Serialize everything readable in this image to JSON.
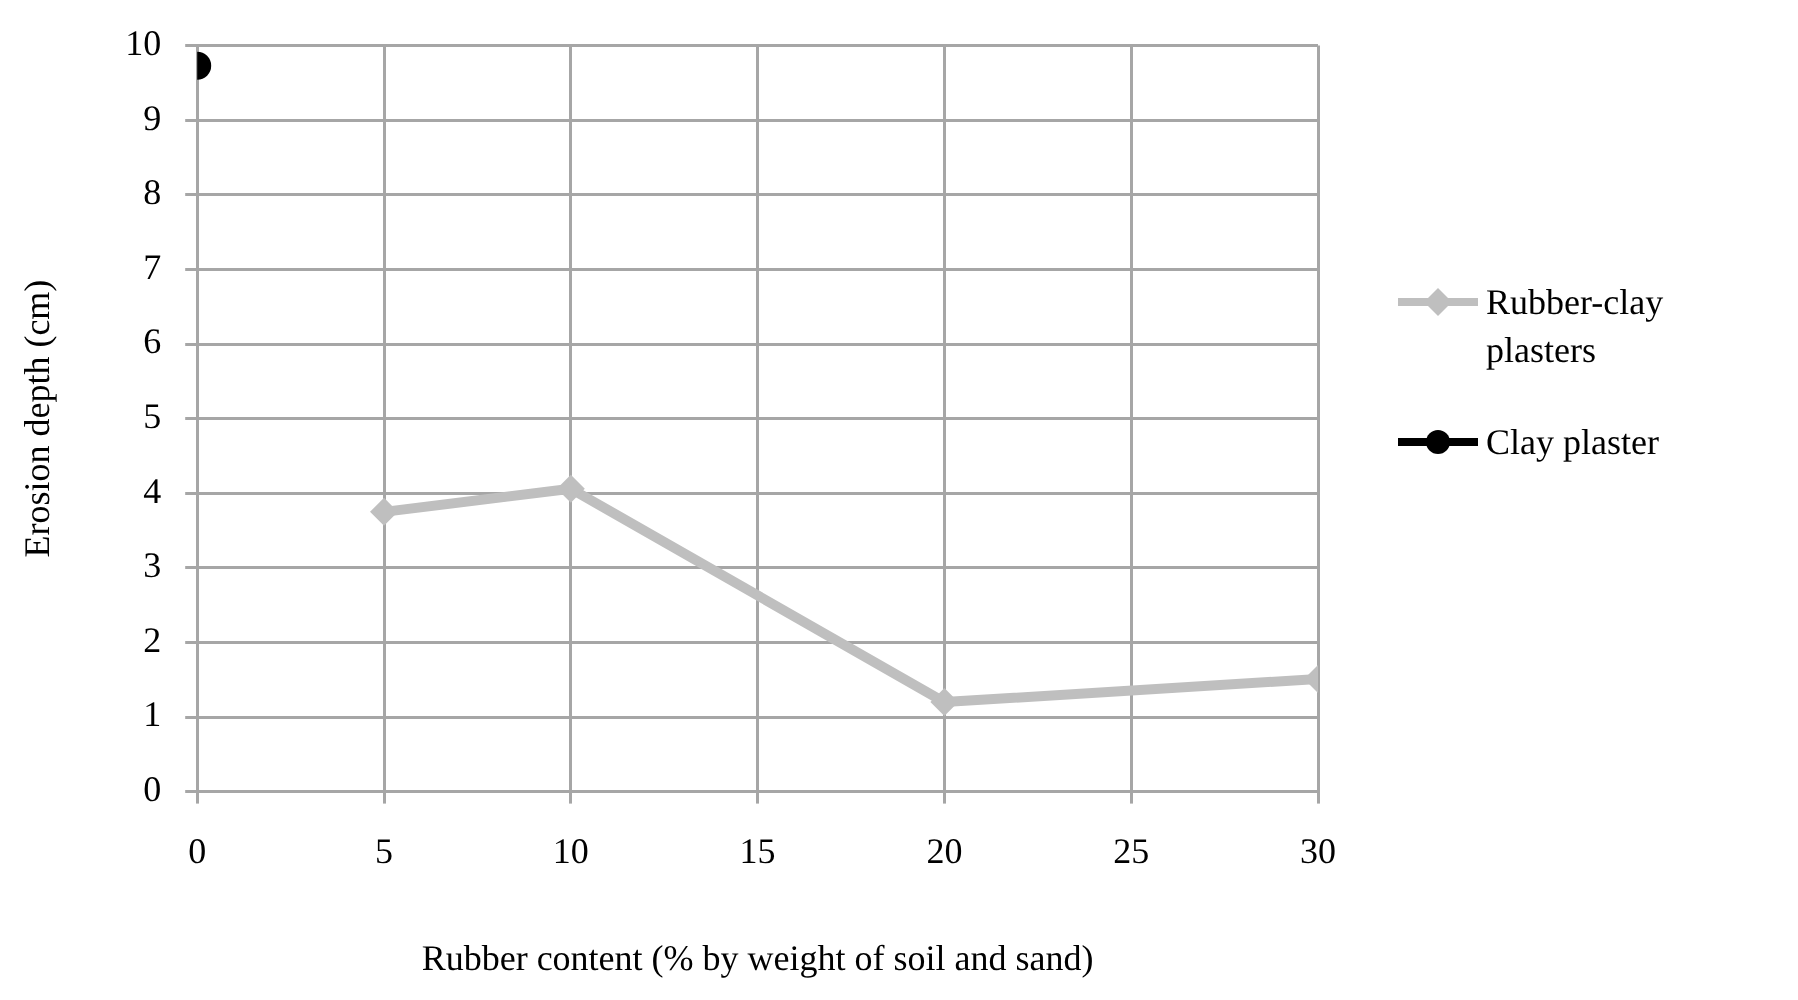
{
  "chart_data": {
    "type": "line",
    "xlabel": "Rubber content (% by weight of soil and sand)",
    "ylabel": "Erosion depth (cm)",
    "xlim": [
      0,
      30
    ],
    "xticks": [
      0,
      5,
      10,
      15,
      20,
      25,
      30
    ],
    "ylim": [
      0,
      10
    ],
    "yticks": [
      0,
      1,
      2,
      3,
      4,
      5,
      6,
      7,
      8,
      9,
      10
    ],
    "grid": true,
    "legend": "right",
    "series": [
      {
        "name": "Rubber-clay plasters",
        "color": "#bfbfbf",
        "marker": "diamond",
        "x": [
          5,
          10,
          20,
          30
        ],
        "values": [
          3.75,
          4.06,
          1.2,
          1.51
        ]
      },
      {
        "name": "Clay plaster",
        "color": "#000000",
        "marker": "circle",
        "x": [
          0
        ],
        "values": [
          9.73
        ]
      }
    ]
  }
}
